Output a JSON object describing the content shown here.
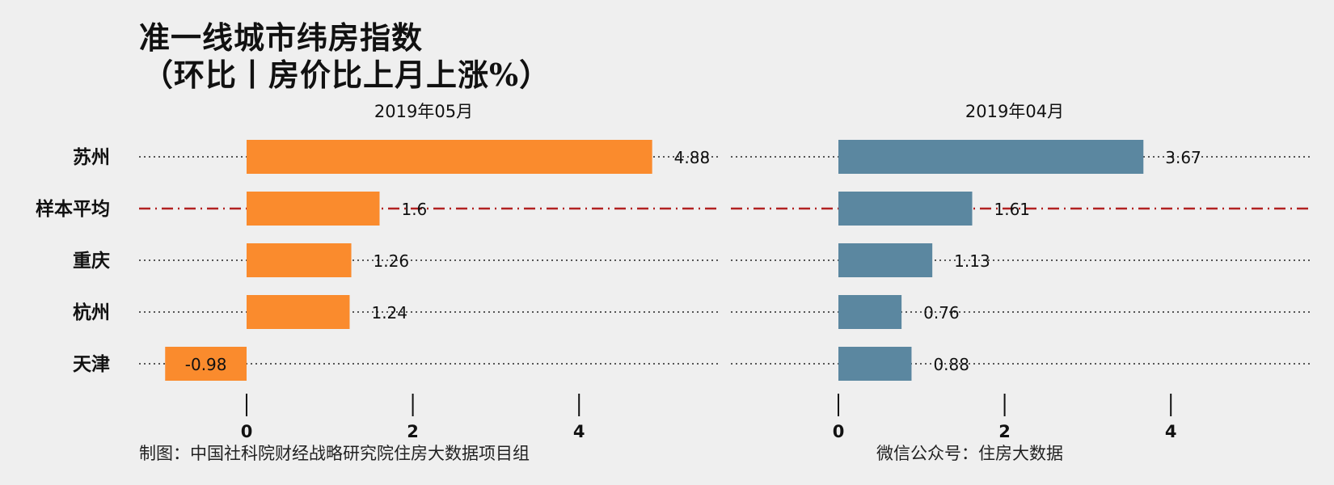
{
  "title_line1": "准一线城市纬房指数",
  "title_line2": "（环比丨房价比上月上涨%）",
  "footer_left": "制图：中国社科院财经战略研究院住房大数据项目组",
  "footer_right": "微信公众号：住房大数据",
  "colors": {
    "panel_left_bar": "#fa8b2d",
    "panel_right_bar": "#5b87a0",
    "average_line": "#b22222",
    "background": "#efefef"
  },
  "chart_data": [
    {
      "type": "bar",
      "orientation": "horizontal",
      "title": "2019年05月",
      "categories": [
        "苏州",
        "样本平均",
        "重庆",
        "杭州",
        "天津"
      ],
      "values": [
        4.88,
        1.6,
        1.26,
        1.24,
        -0.98
      ],
      "value_labels": [
        "4.88",
        "1.6",
        "1.26",
        "1.24",
        "-0.98"
      ],
      "xlim": [
        -1.3,
        5.7
      ],
      "x_ticks": [
        0,
        2,
        4
      ],
      "x_tick_labels": [
        "0",
        "2",
        "4"
      ],
      "reference_category": "样本平均",
      "color": "#fa8b2d"
    },
    {
      "type": "bar",
      "orientation": "horizontal",
      "title": "2019年04月",
      "categories": [
        "苏州",
        "样本平均",
        "重庆",
        "杭州",
        "天津"
      ],
      "values": [
        3.67,
        1.61,
        1.13,
        0.76,
        0.88
      ],
      "value_labels": [
        "3.67",
        "1.61",
        "1.13",
        "0.76",
        "0.88"
      ],
      "xlim": [
        -1.3,
        5.7
      ],
      "x_ticks": [
        0,
        2,
        4
      ],
      "x_tick_labels": [
        "0",
        "2",
        "4"
      ],
      "reference_category": "样本平均",
      "color": "#5b87a0"
    }
  ]
}
